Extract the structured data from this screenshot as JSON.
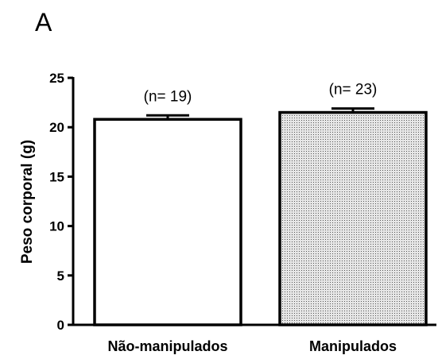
{
  "panel_label": "A",
  "chart_data": {
    "type": "bar",
    "ylabel": "Peso corporal (g)",
    "xlabel": "",
    "ylim": [
      0,
      25
    ],
    "yticks": [
      "0",
      "5",
      "10",
      "15",
      "20",
      "25"
    ],
    "categories": [
      "Não-manipulados",
      "Manipulados"
    ],
    "values": [
      20.8,
      21.5
    ],
    "errors": [
      0.4,
      0.4
    ],
    "annotations": [
      "(n= 19)",
      "(n= 23)"
    ],
    "fills": [
      "solid-white",
      "dotted-gray"
    ],
    "colors": {
      "outline": "#000000",
      "fill_plain": "#ffffff",
      "fill_dotted_base": "#e6e6e6",
      "fill_dot": "#555555"
    },
    "grid": false
  }
}
